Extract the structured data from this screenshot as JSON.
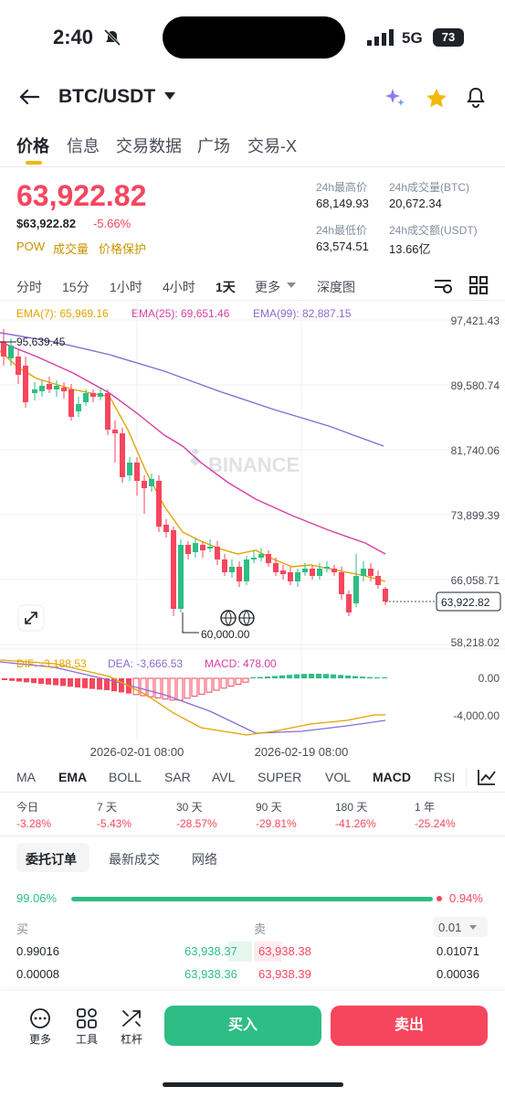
{
  "status": {
    "time": "2:40",
    "network": "5G",
    "battery": "73"
  },
  "header": {
    "pair": "BTC/USDT"
  },
  "tabs": [
    "价格",
    "信息",
    "交易数据",
    "广场",
    "交易-X"
  ],
  "price": {
    "last": "63,922.82",
    "usd": "$63,922.82",
    "change": "-5.66%",
    "tag_pow": "POW",
    "tag_volume": "成交量",
    "tag_protect": "价格保护"
  },
  "stats": {
    "high_label": "24h最高价",
    "high": "68,149.93",
    "vol_btc_label": "24h成交量(BTC)",
    "vol_btc": "20,672.34",
    "low_label": "24h最低价",
    "low": "63,574.51",
    "vol_usdt_label": "24h成交额(USDT)",
    "vol_usdt": "13.66亿"
  },
  "timeframes": [
    "分时",
    "15分",
    "1小时",
    "4小时",
    "1天",
    "更多",
    "深度图"
  ],
  "ema_legend": {
    "ema7": "EMA(7): 65,969.16",
    "ema25": "EMA(25): 69,651.46",
    "ema99": "EMA(99): 82,887.15"
  },
  "chart": {
    "y_ticks": [
      "97,421.43",
      "89,580.74",
      "81,740.06",
      "73,899.39",
      "66,058.71",
      "58,218.02"
    ],
    "last_price_tag": "63,922.82",
    "high_mark": "95,639.45",
    "low_mark": "60,000.00",
    "watermark": "BINANCE",
    "x_ticks": [
      "2026-02-01 08:00",
      "2026-02-19 08:00"
    ]
  },
  "macd": {
    "dif": "DIF: -3,188.53",
    "dea": "DEA: -3,666.53",
    "macd": "MACD: 478.00",
    "y_ticks": [
      "0.00",
      "-4,000.00"
    ]
  },
  "indicators": [
    "MA",
    "EMA",
    "BOLL",
    "SAR",
    "AVL",
    "SUPER",
    "VOL",
    "MACD",
    "RSI"
  ],
  "performance": [
    {
      "label": "今日",
      "value": "-3.28%"
    },
    {
      "label": "7 天",
      "value": "-5.43%"
    },
    {
      "label": "30 天",
      "value": "-28.57%"
    },
    {
      "label": "90 天",
      "value": "-29.81%"
    },
    {
      "label": "180 天",
      "value": "-41.26%"
    },
    {
      "label": "1 年",
      "value": "-25.24%"
    }
  ],
  "orderbook": {
    "tabs": [
      "委托订单",
      "最新成交",
      "网络"
    ],
    "buy_pct": "99.06%",
    "sell_pct": "0.94%",
    "buy_label": "买",
    "sell_label": "卖",
    "precision": "0.01",
    "rows": [
      {
        "bid_qty": "0.99016",
        "bid_price": "63,938.37",
        "ask_price": "63,938.38",
        "ask_qty": "0.01071"
      },
      {
        "bid_qty": "0.00008",
        "bid_price": "63,938.36",
        "ask_price": "63,938.39",
        "ask_qty": "0.00036"
      }
    ]
  },
  "bottom": {
    "more": "更多",
    "tools": "工具",
    "leverage": "杠杆",
    "buy": "买入",
    "sell": "卖出"
  }
}
